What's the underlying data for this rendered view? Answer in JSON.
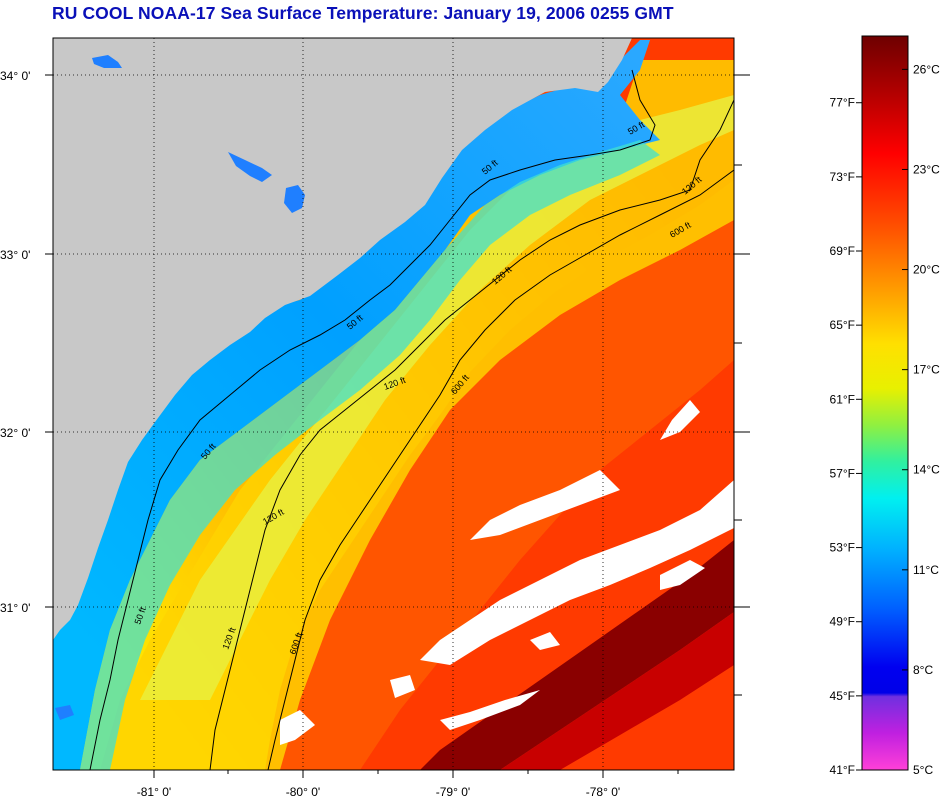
{
  "title": "RU COOL  NOAA-17  Sea Surface Temperature:  January 19, 2006 0255 GMT",
  "map": {
    "latitude_labels": [
      "34° 0'",
      "33° 0'",
      "32° 0'",
      "31° 0'"
    ],
    "longitude_labels": [
      "-81° 0'",
      "-80° 0'",
      "-79° 0'",
      "-78° 0'"
    ],
    "contour_labels": [
      "50 ft",
      "50 ft",
      "50 ft",
      "50 ft",
      "50 ft",
      "120 ft",
      "120 ft",
      "120 ft",
      "120 ft",
      "120 ft",
      "600 ft",
      "600 ft",
      "600 ft"
    ],
    "colors": {
      "land": "#c8c8c8",
      "cloud": "#ffffff",
      "gridline": "#000000"
    }
  },
  "colorbar": {
    "fahrenheit_labels": [
      "77°F",
      "73°F",
      "69°F",
      "65°F",
      "61°F",
      "57°F",
      "53°F",
      "49°F",
      "45°F",
      "41°F"
    ],
    "celsius_labels": [
      "26°C",
      "23°C",
      "20°C",
      "17°C",
      "14°C",
      "11°C",
      "8°C",
      "5°C"
    ],
    "range_celsius": [
      5,
      27
    ],
    "colors_top_to_bottom": [
      "#7a0000",
      "#c00000",
      "#ff1000",
      "#ff5a00",
      "#ff9a00",
      "#ffd000",
      "#f0f000",
      "#a8f030",
      "#40f0b0",
      "#00e8f0",
      "#00a8ff",
      "#0060ff",
      "#0000f0",
      "#8030e0",
      "#ff20d0",
      "#ff60e0"
    ]
  }
}
